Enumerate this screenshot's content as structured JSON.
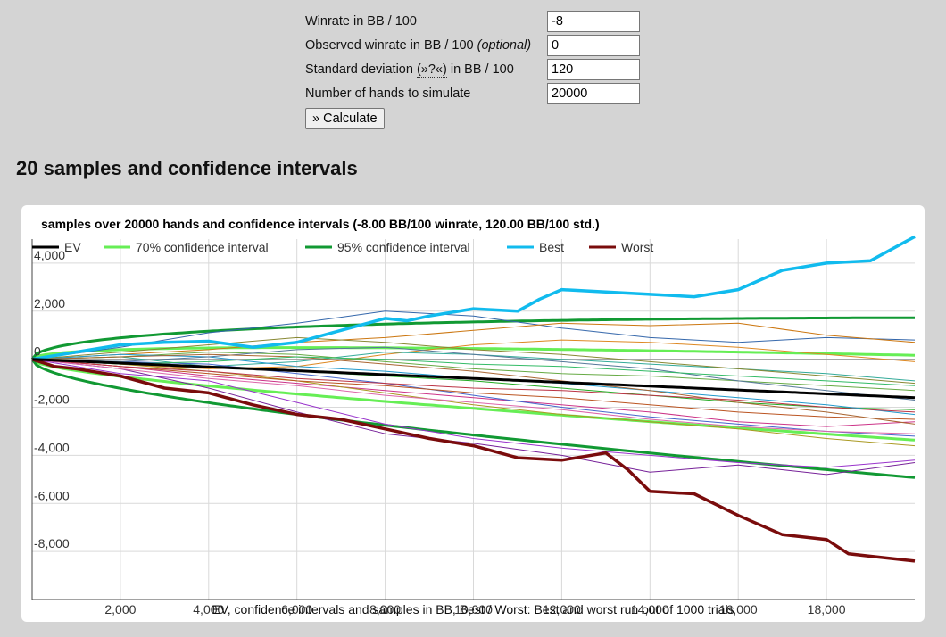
{
  "form": {
    "winrate_label": "Winrate in BB / 100",
    "winrate_value": "-8",
    "observed_label": "Observed winrate in BB / 100 ",
    "observed_optional": "(optional)",
    "observed_value": "0",
    "stddev_label_a": "Standard deviation ",
    "stddev_help": "(»?«)",
    "stddev_label_b": " in BB / 100",
    "stddev_value": "120",
    "hands_label": "Number of hands to simulate",
    "hands_value": "20000",
    "calculate_label": "» Calculate"
  },
  "section_title": "20 samples and confidence intervals",
  "chart_data": {
    "type": "line",
    "title": "samples over 20000 hands and confidence intervals (-8.00 BB/100 winrate, 120.00 BB/100 std.)",
    "caption": "EV, confidence intervals and samples in BB, Best / Worst: Best and worst run out of 1000 trials",
    "xlim": [
      0,
      20000
    ],
    "ylim": [
      -10000,
      5000
    ],
    "x_ticks": [
      2000,
      4000,
      6000,
      8000,
      10000,
      12000,
      14000,
      16000,
      18000
    ],
    "x_tick_labels": [
      "2,000",
      "4,000",
      "6,000",
      "8,000",
      "10,000",
      "12,000",
      "14,000",
      "16,000",
      "18,000"
    ],
    "y_ticks": [
      4000,
      2000,
      0,
      -2000,
      -4000,
      -6000,
      -8000
    ],
    "y_tick_labels": [
      "4,000",
      "2,000",
      "0",
      "-2,000",
      "-4,000",
      "-6,000",
      "-8,000"
    ],
    "grid": true,
    "legend_position": "top-left",
    "legend": [
      {
        "name": "EV",
        "color": "#000000"
      },
      {
        "name": "70% confidence interval",
        "color": "#66ee55"
      },
      {
        "name": "95% confidence interval",
        "color": "#119933"
      },
      {
        "name": "Best",
        "color": "#11bbee"
      },
      {
        "name": "Worst",
        "color": "#7a0c0c"
      }
    ],
    "ev": {
      "winrate_bb100": -8,
      "std_bb100": 120,
      "z70": 1.04,
      "z95": 1.96
    },
    "series": [
      {
        "name": "Best",
        "color": "#11bbee",
        "width": 3.5,
        "x": [
          0,
          1000,
          2000,
          3000,
          4000,
          5000,
          6000,
          7000,
          8000,
          8500,
          9000,
          10000,
          11000,
          11500,
          12000,
          13000,
          14000,
          15000,
          16000,
          17000,
          18000,
          19000,
          20000
        ],
        "y": [
          0,
          300,
          600,
          700,
          750,
          500,
          700,
          1200,
          1700,
          1600,
          1800,
          2100,
          2000,
          2500,
          2900,
          2800,
          2700,
          2600,
          2900,
          3700,
          4000,
          4100,
          5100
        ]
      },
      {
        "name": "Worst",
        "color": "#7a0c0c",
        "width": 3.5,
        "x": [
          0,
          500,
          1000,
          2000,
          3000,
          4000,
          5000,
          6000,
          7000,
          8000,
          9000,
          10000,
          11000,
          12000,
          13000,
          13500,
          14000,
          15000,
          16000,
          17000,
          18000,
          18500,
          19000,
          20000
        ],
        "y": [
          0,
          -300,
          -400,
          -700,
          -1200,
          -1400,
          -1900,
          -2300,
          -2500,
          -2900,
          -3300,
          -3600,
          -4100,
          -4200,
          -3900,
          -4600,
          -5500,
          -5600,
          -6500,
          -7300,
          -7500,
          -8100,
          -8200,
          -8400
        ]
      },
      {
        "name": "",
        "color": "#3366aa",
        "width": 1,
        "x": [
          0,
          2000,
          4000,
          6000,
          8000,
          10000,
          12000,
          14000,
          16000,
          18000,
          20000
        ],
        "y": [
          0,
          500,
          1100,
          1500,
          2000,
          1800,
          1300,
          900,
          700,
          900,
          800
        ]
      },
      {
        "name": "",
        "color": "#cc7711",
        "width": 1,
        "x": [
          0,
          2000,
          4000,
          6000,
          8000,
          10000,
          12000,
          14000,
          16000,
          18000,
          20000
        ],
        "y": [
          0,
          200,
          400,
          700,
          900,
          1200,
          1500,
          1400,
          1500,
          1000,
          700
        ]
      },
      {
        "name": "",
        "color": "#dd8822",
        "width": 1,
        "x": [
          0,
          2000,
          4000,
          6000,
          8000,
          10000,
          12000,
          14000,
          16000,
          18000,
          20000
        ],
        "y": [
          0,
          -200,
          -400,
          -300,
          200,
          600,
          800,
          700,
          500,
          200,
          -100
        ]
      },
      {
        "name": "",
        "color": "#33aa99",
        "width": 1,
        "x": [
          0,
          2000,
          4000,
          6000,
          8000,
          10000,
          12000,
          14000,
          16000,
          18000,
          20000
        ],
        "y": [
          0,
          100,
          -300,
          -100,
          300,
          200,
          0,
          -200,
          -400,
          -600,
          -900
        ]
      },
      {
        "name": "",
        "color": "#9933cc",
        "width": 1,
        "x": [
          0,
          2000,
          4000,
          6000,
          8000,
          10000,
          12000,
          14000,
          16000,
          18000,
          20000
        ],
        "y": [
          0,
          -600,
          -900,
          -1800,
          -2700,
          -3300,
          -3700,
          -4000,
          -4300,
          -4500,
          -4200
        ]
      },
      {
        "name": "",
        "color": "#772299",
        "width": 1,
        "x": [
          0,
          2000,
          4000,
          6000,
          8000,
          10000,
          12000,
          14000,
          16000,
          18000,
          20000
        ],
        "y": [
          0,
          -400,
          -1200,
          -2200,
          -3100,
          -3500,
          -4000,
          -4700,
          -4400,
          -4800,
          -4300
        ]
      },
      {
        "name": "",
        "color": "#cc3388",
        "width": 1,
        "x": [
          0,
          2000,
          4000,
          6000,
          8000,
          10000,
          12000,
          14000,
          16000,
          18000,
          20000
        ],
        "y": [
          0,
          -300,
          -700,
          -1000,
          -1300,
          -1600,
          -1900,
          -2200,
          -2600,
          -2800,
          -2600
        ]
      },
      {
        "name": "",
        "color": "#22aa22",
        "width": 1,
        "x": [
          0,
          2000,
          4000,
          6000,
          8000,
          10000,
          12000,
          14000,
          16000,
          18000,
          20000
        ],
        "y": [
          0,
          -100,
          -300,
          -500,
          -700,
          -900,
          -1200,
          -1500,
          -1800,
          -2000,
          -2100
        ]
      },
      {
        "name": "",
        "color": "#aa9922",
        "width": 1,
        "x": [
          0,
          2000,
          4000,
          6000,
          8000,
          10000,
          12000,
          14000,
          16000,
          18000,
          20000
        ],
        "y": [
          0,
          -200,
          -500,
          -900,
          -1400,
          -1900,
          -2300,
          -2600,
          -2900,
          -3300,
          -3600
        ]
      },
      {
        "name": "",
        "color": "#4466cc",
        "width": 1,
        "x": [
          0,
          2000,
          4000,
          6000,
          8000,
          10000,
          12000,
          14000,
          16000,
          18000,
          20000
        ],
        "y": [
          0,
          -100,
          -200,
          -600,
          -1000,
          -1500,
          -2000,
          -2400,
          -2700,
          -3000,
          -3200
        ]
      },
      {
        "name": "",
        "color": "#66aa44",
        "width": 1,
        "x": [
          0,
          2000,
          4000,
          6000,
          8000,
          10000,
          12000,
          14000,
          16000,
          18000,
          20000
        ],
        "y": [
          0,
          100,
          300,
          200,
          -100,
          -400,
          -600,
          -700,
          -900,
          -1100,
          -1300
        ]
      },
      {
        "name": "",
        "color": "#bb5522",
        "width": 1,
        "x": [
          0,
          2000,
          4000,
          6000,
          8000,
          10000,
          12000,
          14000,
          16000,
          18000,
          20000
        ],
        "y": [
          0,
          -300,
          -600,
          -900,
          -1100,
          -1400,
          -1600,
          -1900,
          -2200,
          -2400,
          -2500
        ]
      },
      {
        "name": "",
        "color": "#2299cc",
        "width": 1,
        "x": [
          0,
          2000,
          4000,
          6000,
          8000,
          10000,
          12000,
          14000,
          16000,
          18000,
          20000
        ],
        "y": [
          0,
          200,
          100,
          -300,
          -500,
          -800,
          -1000,
          -1300,
          -1600,
          -1900,
          -2300
        ]
      },
      {
        "name": "",
        "color": "#888833",
        "width": 1,
        "x": [
          0,
          2000,
          4000,
          6000,
          8000,
          10000,
          12000,
          14000,
          16000,
          18000,
          20000
        ],
        "y": [
          0,
          300,
          600,
          900,
          700,
          400,
          200,
          -100,
          -400,
          -700,
          -1000
        ]
      },
      {
        "name": "",
        "color": "#dd66aa",
        "width": 1,
        "x": [
          0,
          2000,
          4000,
          6000,
          8000,
          10000,
          12000,
          14000,
          16000,
          18000,
          20000
        ],
        "y": [
          0,
          -400,
          -800,
          -1100,
          -1500,
          -1800,
          -2100,
          -2500,
          -2800,
          -3000,
          -3100
        ]
      },
      {
        "name": "",
        "color": "#557799",
        "width": 1,
        "x": [
          0,
          2000,
          4000,
          6000,
          8000,
          10000,
          12000,
          14000,
          16000,
          18000,
          20000
        ],
        "y": [
          0,
          -100,
          100,
          400,
          500,
          200,
          -100,
          -400,
          -900,
          -1300,
          -1700
        ]
      },
      {
        "name": "",
        "color": "#aa6633",
        "width": 1,
        "x": [
          0,
          2000,
          4000,
          6000,
          8000,
          10000,
          12000,
          14000,
          16000,
          18000,
          20000
        ],
        "y": [
          0,
          100,
          200,
          100,
          -200,
          -500,
          -900,
          -1300,
          -1800,
          -2200,
          -2700
        ]
      },
      {
        "name": "",
        "color": "#33bb66",
        "width": 1,
        "x": [
          0,
          2000,
          4000,
          6000,
          8000,
          10000,
          12000,
          14000,
          16000,
          18000,
          20000
        ],
        "y": [
          0,
          -200,
          -100,
          100,
          0,
          -200,
          -300,
          -500,
          -700,
          -900,
          -1100
        ]
      },
      {
        "name": "",
        "color": "#bb3344",
        "width": 1,
        "x": [
          0,
          2000,
          4000,
          6000,
          8000,
          10000,
          12000,
          14000,
          16000,
          18000,
          20000
        ],
        "y": [
          0,
          -300,
          -500,
          -800,
          -1000,
          -1200,
          -1300,
          -1500,
          -1700,
          -2000,
          -2200
        ]
      }
    ]
  }
}
